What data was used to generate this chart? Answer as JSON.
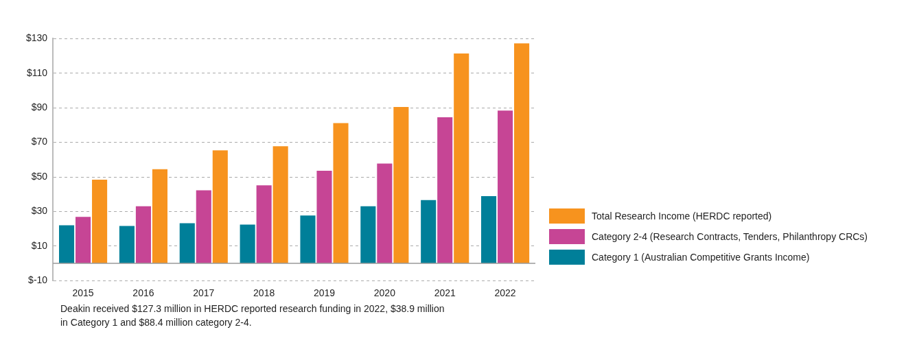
{
  "chart_data": {
    "type": "bar",
    "categories": [
      "2015",
      "2016",
      "2017",
      "2018",
      "2019",
      "2020",
      "2021",
      "2022"
    ],
    "series": [
      {
        "name": "Category 1 (Australian Competitive Grants Income)",
        "color": "#007f99",
        "values": [
          22.0,
          21.6,
          23.2,
          22.4,
          27.7,
          33.0,
          36.6,
          38.9
        ]
      },
      {
        "name": "Category 2-4 (Research Contracts, Tenders, Philanthropy CRCs)",
        "color": "#c64595",
        "values": [
          26.9,
          33.0,
          42.3,
          45.1,
          53.6,
          57.7,
          84.5,
          88.4
        ]
      },
      {
        "name": "Total Research Income (HERDC reported)",
        "color": "#f7931e",
        "values": [
          48.4,
          54.5,
          65.4,
          67.8,
          81.2,
          90.5,
          121.4,
          127.3
        ]
      }
    ],
    "ylim": [
      -10,
      130
    ],
    "yticks": [
      {
        "value": -10,
        "label": "$-10"
      },
      {
        "value": 10,
        "label": "$10"
      },
      {
        "value": 30,
        "label": "$30"
      },
      {
        "value": 50,
        "label": "$50"
      },
      {
        "value": 70,
        "label": "$70"
      },
      {
        "value": 90,
        "label": "$90"
      },
      {
        "value": 110,
        "label": "$110"
      },
      {
        "value": 130,
        "label": "$130"
      }
    ],
    "grid": "y",
    "legend": "right",
    "annotations": [
      "Deakin received $127.3 million in HERDC reported research funding in 2022, $38.9 million in Category 1 and $88.4 million category 2-4."
    ]
  }
}
